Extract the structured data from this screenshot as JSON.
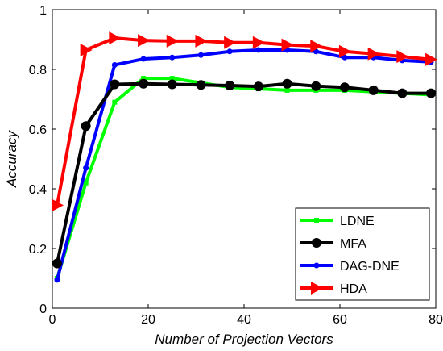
{
  "chart_data": {
    "type": "line",
    "title": "",
    "xlabel": "Number of Projection Vectors",
    "ylabel": "Accuracy",
    "xlim": [
      0,
      80
    ],
    "ylim": [
      0,
      1
    ],
    "xticks": [
      0,
      20,
      40,
      60,
      80
    ],
    "yticks": [
      0,
      0.2,
      0.4,
      0.6,
      0.8,
      1
    ],
    "xtick_labels": [
      "0",
      "20",
      "40",
      "60",
      "80"
    ],
    "ytick_labels": [
      "0",
      "0.2",
      "0.4",
      "0.6",
      "0.8",
      "1"
    ],
    "grid": false,
    "legend_position": "bottom-right",
    "series": [
      {
        "name": "LDNE",
        "color": "#00ff00",
        "marker": "square",
        "x": [
          1,
          7,
          13,
          19,
          25,
          31,
          37,
          43,
          49,
          55,
          61,
          67,
          73,
          79
        ],
        "y": [
          0.1,
          0.42,
          0.69,
          0.77,
          0.77,
          0.755,
          0.74,
          0.735,
          0.73,
          0.73,
          0.73,
          0.725,
          0.72,
          0.715
        ]
      },
      {
        "name": "MFA",
        "color": "#000000",
        "marker": "circle",
        "x": [
          1,
          7,
          13,
          19,
          25,
          31,
          37,
          43,
          49,
          55,
          61,
          67,
          73,
          79
        ],
        "y": [
          0.15,
          0.61,
          0.75,
          0.752,
          0.75,
          0.748,
          0.746,
          0.743,
          0.752,
          0.744,
          0.74,
          0.73,
          0.72,
          0.72
        ]
      },
      {
        "name": "DAG-DNE",
        "color": "#0000ff",
        "marker": "dot",
        "x": [
          1,
          7,
          13,
          19,
          25,
          31,
          37,
          43,
          49,
          55,
          61,
          67,
          73,
          79
        ],
        "y": [
          0.095,
          0.47,
          0.815,
          0.835,
          0.84,
          0.848,
          0.86,
          0.865,
          0.865,
          0.86,
          0.84,
          0.84,
          0.83,
          0.825
        ]
      },
      {
        "name": "HDA",
        "color": "#ff0000",
        "marker": "triangle-right",
        "x": [
          1,
          7,
          13,
          19,
          25,
          31,
          37,
          43,
          49,
          55,
          61,
          67,
          73,
          79
        ],
        "y": [
          0.345,
          0.865,
          0.905,
          0.897,
          0.895,
          0.895,
          0.89,
          0.89,
          0.882,
          0.878,
          0.86,
          0.852,
          0.843,
          0.833
        ]
      }
    ]
  }
}
